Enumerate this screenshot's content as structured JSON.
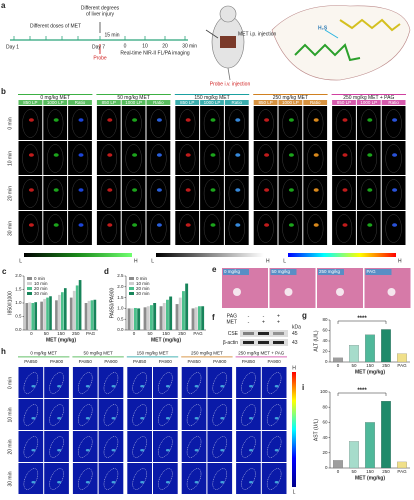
{
  "panel_a": {
    "letter": "a",
    "day1": "Day 1",
    "doses": "Different doses of MET",
    "day7": "Day 7",
    "injury": [
      "Different degrees",
      "of liver injury"
    ],
    "wait": "15 min",
    "times": [
      "0",
      "10",
      "20",
      "30"
    ],
    "unit": "min",
    "imaging": "Real-time NIR-II FL/PA imaging",
    "probe": "Probe",
    "met_injection": "MET i.p. injection",
    "probe_injection": "Probe i.v. injection",
    "analyte": "H₂S"
  },
  "panel_b": {
    "letter": "b",
    "groups": [
      "0 mg/kg MET",
      "50 mg/kg MET",
      "150 mg/kg MET",
      "250 mg/kg MET",
      "250 mg/kg MET + PAG"
    ],
    "columns": [
      "850 LP",
      "1000 LP",
      "Ratio"
    ],
    "rows": [
      "0 min",
      "10 min",
      "20 min",
      "30 min"
    ],
    "colorbars": [
      {
        "low": "L",
        "high": "H"
      },
      {
        "low": "L",
        "high": "H"
      },
      {
        "low": "L",
        "high": "H"
      }
    ]
  },
  "panel_e": {
    "letter": "e",
    "images": [
      "0 mg/kg",
      "50 mg/kg",
      "250 mg/kg",
      "PAG"
    ]
  },
  "panel_f": {
    "letter": "f",
    "rows": [
      {
        "name": "PAG",
        "lanes": [
          "-",
          "-",
          "+"
        ]
      },
      {
        "name": "MET",
        "lanes": [
          "-",
          "+",
          "+"
        ]
      }
    ],
    "unit": "kDa",
    "bands": [
      {
        "name": "CSE",
        "kda": "45"
      },
      {
        "name": "β-actin",
        "kda": "43"
      }
    ]
  },
  "panel_h": {
    "letter": "h",
    "groups": [
      "0 mg/kg MET",
      "50 mg/kg MET",
      "150 mg/kg MET",
      "250 mg/kg MET",
      "250 mg/kg MET + PAG"
    ],
    "columns": [
      "PA850",
      "PA900"
    ],
    "rows": [
      "0 min",
      "10 min",
      "20 min",
      "30 min"
    ],
    "colorbar": {
      "low": "L",
      "high": "H"
    }
  },
  "chart_data": [
    {
      "type": "bar",
      "letter": "c",
      "ylabel": "I850/I1000",
      "xlabel": "MET (mg/kg)",
      "categories": [
        "0",
        "50",
        "150",
        "250",
        "PAG"
      ],
      "series": [
        {
          "name": "0 min",
          "color": "#8c8c8c",
          "values": [
            1.0,
            1.05,
            1.1,
            1.2,
            1.0
          ]
        },
        {
          "name": "10 min",
          "color": "#cfcfcf",
          "values": [
            1.02,
            1.15,
            1.3,
            1.45,
            1.08
          ]
        },
        {
          "name": "20 min",
          "color": "#4cc08c",
          "values": [
            1.0,
            1.2,
            1.4,
            1.65,
            1.1
          ]
        },
        {
          "name": "30 min",
          "color": "#17845a",
          "values": [
            1.03,
            1.25,
            1.55,
            1.85,
            1.12
          ]
        }
      ],
      "ylim": [
        0,
        2
      ],
      "yticks": [
        {
          "value": 0,
          "label": "0.0"
        },
        {
          "value": 0.5,
          "label": "0.5"
        },
        {
          "value": 1,
          "label": "1.0"
        },
        {
          "value": 1.5,
          "label": "1.5"
        },
        {
          "value": 2,
          "label": "2.0"
        }
      ]
    },
    {
      "type": "bar",
      "letter": "d",
      "ylabel": "PA850/PA900",
      "xlabel": "MET (mg/kg)",
      "categories": [
        "0",
        "50",
        "150",
        "250",
        "PAG"
      ],
      "series": [
        {
          "name": "0 min",
          "color": "#8c8c8c",
          "values": [
            1.0,
            1.05,
            1.1,
            1.2,
            1.0
          ]
        },
        {
          "name": "10 min",
          "color": "#cfcfcf",
          "values": [
            1.0,
            1.1,
            1.25,
            1.5,
            1.05
          ]
        },
        {
          "name": "20 min",
          "color": "#4cc08c",
          "values": [
            1.02,
            1.15,
            1.4,
            1.8,
            1.1
          ]
        },
        {
          "name": "30 min",
          "color": "#17845a",
          "values": [
            1.0,
            1.25,
            1.55,
            2.15,
            1.1
          ]
        }
      ],
      "ylim": [
        0,
        2.5
      ],
      "yticks": [
        {
          "value": 0,
          "label": "0.0"
        },
        {
          "value": 0.5,
          "label": "0.5"
        },
        {
          "value": 1,
          "label": "1.0"
        },
        {
          "value": 1.5,
          "label": "1.5"
        },
        {
          "value": 2,
          "label": "2.0"
        },
        {
          "value": 2.5,
          "label": "2.5"
        }
      ]
    },
    {
      "type": "bar",
      "letter": "g",
      "ylabel": "ALT (U/L)",
      "xlabel": "MET (mg/kg)",
      "annotation": "****",
      "categories": [
        "0",
        "50",
        "150",
        "250",
        "PAG"
      ],
      "values": [
        8,
        32,
        52,
        62,
        16
      ],
      "colors": [
        "#9e9e9e",
        "#a6dccb",
        "#4fb89a",
        "#1f8a6a",
        "#f0e08a"
      ],
      "ylim": [
        0,
        80
      ],
      "yticks": [
        0,
        20,
        40,
        60,
        80
      ]
    },
    {
      "type": "bar",
      "letter": "i",
      "ylabel": "AST (U/L)",
      "xlabel": "MET (mg/kg)",
      "annotation": "****",
      "categories": [
        "0",
        "50",
        "150",
        "250",
        "PAG"
      ],
      "values": [
        10,
        35,
        60,
        88,
        8
      ],
      "colors": [
        "#9e9e9e",
        "#a6dccb",
        "#4fb89a",
        "#1f8a6a",
        "#f0e08a"
      ],
      "ylim": [
        0,
        100
      ],
      "yticks": [
        0,
        20,
        40,
        60,
        80,
        100
      ]
    }
  ]
}
